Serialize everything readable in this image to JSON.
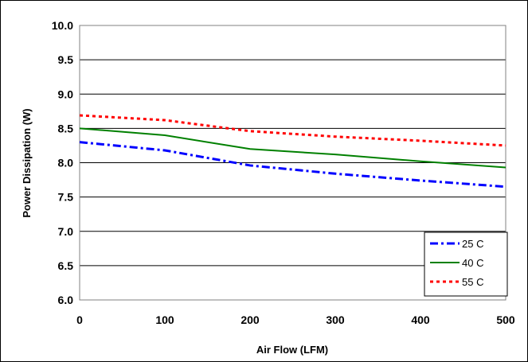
{
  "chart_data": {
    "type": "line",
    "title": "",
    "xlabel": "Air Flow (LFM)",
    "ylabel": "Power Dissipation (W)",
    "x": [
      0,
      100,
      200,
      300,
      400,
      500
    ],
    "xlim": [
      0,
      500
    ],
    "ylim": [
      6.0,
      10.0
    ],
    "x_ticks": [
      "0",
      "100",
      "200",
      "300",
      "400",
      "500"
    ],
    "y_ticks": [
      "6.0",
      "6.5",
      "7.0",
      "7.5",
      "8.0",
      "8.5",
      "9.0",
      "9.5",
      "10.0"
    ],
    "grid": "horizontal",
    "legend_position": "bottom-right",
    "series": [
      {
        "name": "25 C",
        "values": [
          8.3,
          8.18,
          7.96,
          7.84,
          7.74,
          7.65
        ],
        "color": "#0000FF",
        "dash": "dash-dot"
      },
      {
        "name": "40 C",
        "values": [
          8.5,
          8.4,
          8.2,
          8.12,
          8.02,
          7.93
        ],
        "color": "#008000",
        "dash": "solid"
      },
      {
        "name": "55 C",
        "values": [
          8.69,
          8.62,
          8.46,
          8.38,
          8.32,
          8.25
        ],
        "color": "#FF0000",
        "dash": "dot"
      }
    ]
  }
}
